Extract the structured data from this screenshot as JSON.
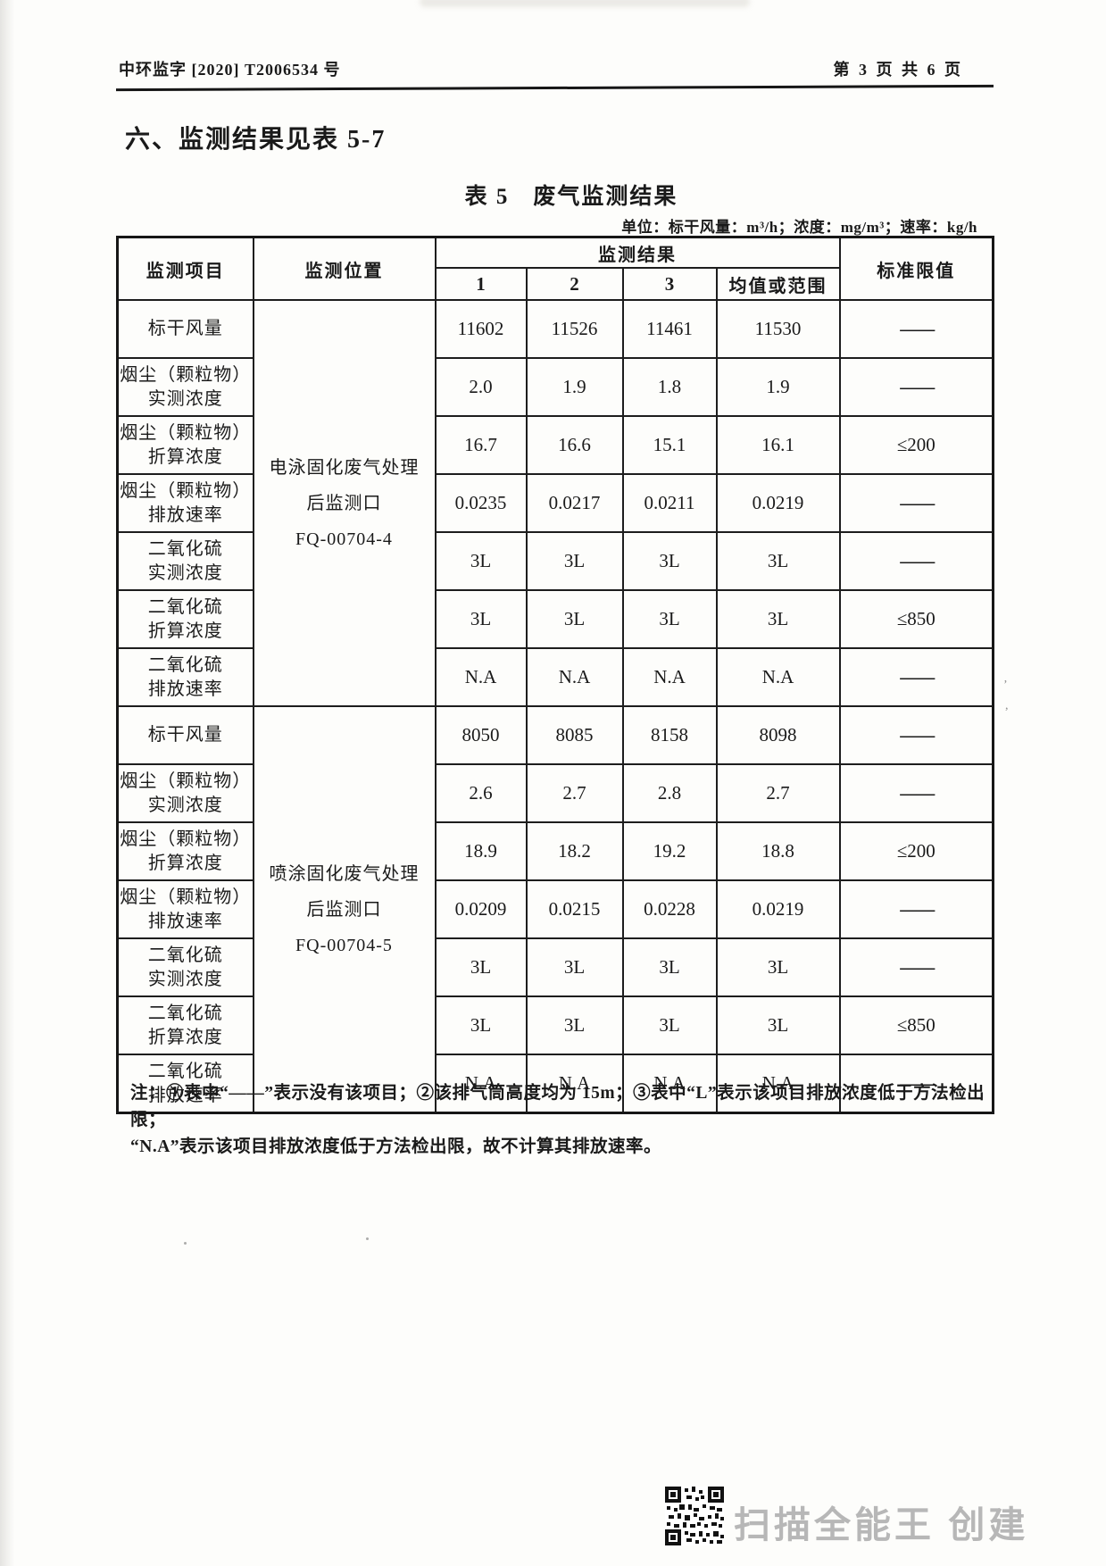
{
  "colors": {
    "ink": "#1a1a1a",
    "border": "#1d1d1d",
    "watermark_gray": "#b7b7b7"
  },
  "page": {
    "doc_number": "中环监字 [2020] T2006534 号",
    "page_indicator": "第 3 页 共 6 页",
    "section_heading": "六、监测结果见表 5-7",
    "table_title": "表 5　废气监测结果",
    "units_line": "单位：标干风量：m³/h；浓度：mg/m³；速率：kg/h"
  },
  "table": {
    "headers": {
      "item": "监测项目",
      "location": "监测位置",
      "results": "监测结果",
      "sub": [
        "1",
        "2",
        "3",
        "均值或范围"
      ],
      "limit": "标准限值"
    },
    "blocks": [
      {
        "location_lines": [
          "电泳固化废气处理",
          "后监测口",
          "FQ-00704-4"
        ],
        "rows": [
          {
            "label_lines": [
              "标干风量"
            ],
            "values": [
              "11602",
              "11526",
              "11461",
              "11530"
            ],
            "limit": "——"
          },
          {
            "label_lines": [
              "烟尘（颗粒物）",
              "实测浓度"
            ],
            "values": [
              "2.0",
              "1.9",
              "1.8",
              "1.9"
            ],
            "limit": "——"
          },
          {
            "label_lines": [
              "烟尘（颗粒物）",
              "折算浓度"
            ],
            "values": [
              "16.7",
              "16.6",
              "15.1",
              "16.1"
            ],
            "limit": "≤200"
          },
          {
            "label_lines": [
              "烟尘（颗粒物）",
              "排放速率"
            ],
            "values": [
              "0.0235",
              "0.0217",
              "0.0211",
              "0.0219"
            ],
            "limit": "——"
          },
          {
            "label_lines": [
              "二氧化硫",
              "实测浓度"
            ],
            "values": [
              "3L",
              "3L",
              "3L",
              "3L"
            ],
            "limit": "——"
          },
          {
            "label_lines": [
              "二氧化硫",
              "折算浓度"
            ],
            "values": [
              "3L",
              "3L",
              "3L",
              "3L"
            ],
            "limit": "≤850"
          },
          {
            "label_lines": [
              "二氧化硫",
              "排放速率"
            ],
            "values": [
              "N.A",
              "N.A",
              "N.A",
              "N.A"
            ],
            "limit": "——"
          }
        ]
      },
      {
        "location_lines": [
          "喷涂固化废气处理",
          "后监测口",
          "FQ-00704-5"
        ],
        "rows": [
          {
            "label_lines": [
              "标干风量"
            ],
            "values": [
              "8050",
              "8085",
              "8158",
              "8098"
            ],
            "limit": "——"
          },
          {
            "label_lines": [
              "烟尘（颗粒物）",
              "实测浓度"
            ],
            "values": [
              "2.6",
              "2.7",
              "2.8",
              "2.7"
            ],
            "limit": "——"
          },
          {
            "label_lines": [
              "烟尘（颗粒物）",
              "折算浓度"
            ],
            "values": [
              "18.9",
              "18.2",
              "19.2",
              "18.8"
            ],
            "limit": "≤200"
          },
          {
            "label_lines": [
              "烟尘（颗粒物）",
              "排放速率"
            ],
            "values": [
              "0.0209",
              "0.0215",
              "0.0228",
              "0.0219"
            ],
            "limit": "——"
          },
          {
            "label_lines": [
              "二氧化硫",
              "实测浓度"
            ],
            "values": [
              "3L",
              "3L",
              "3L",
              "3L"
            ],
            "limit": "——"
          },
          {
            "label_lines": [
              "二氧化硫",
              "折算浓度"
            ],
            "values": [
              "3L",
              "3L",
              "3L",
              "3L"
            ],
            "limit": "≤850"
          },
          {
            "label_lines": [
              "二氧化硫",
              "排放速率"
            ],
            "values": [
              "N.A",
              "N.A",
              "N.A",
              "N.A"
            ],
            "limit": "——"
          }
        ]
      }
    ]
  },
  "notes": {
    "line1": "注：①表中“——”表示没有该项目；②该排气筒高度均为 15m；③表中“L”表示该项目排放浓度低于方法检出限；",
    "line2": "“N.A”表示该项目排放浓度低于方法检出限，故不计算其排放速率。"
  },
  "footer": {
    "watermark_text": "扫描全能王 创建"
  }
}
